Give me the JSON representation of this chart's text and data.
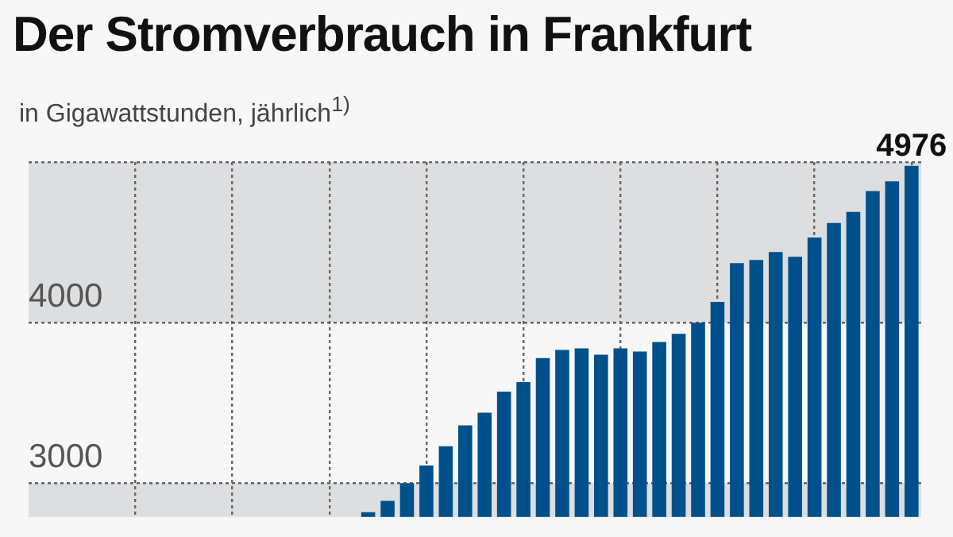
{
  "chart_data": {
    "type": "bar",
    "title": "Der Stromverbrauch in Frankfurt",
    "subtitle": "in Gigawattstunden, jährlich$^{1)}$",
    "categories": [
      null,
      null,
      null,
      null,
      null,
      null,
      null,
      null,
      null,
      null,
      null,
      null,
      null,
      null,
      null,
      null,
      null,
      null,
      null,
      null,
      null,
      null,
      null,
      null,
      null,
      null,
      null,
      null,
      null,
      null,
      null,
      null,
      null,
      null,
      null,
      null,
      null,
      null,
      null,
      null,
      null,
      null,
      null,
      null,
      null,
      null
    ],
    "values": [
      null,
      null,
      null,
      null,
      null,
      null,
      null,
      null,
      null,
      null,
      null,
      null,
      null,
      null,
      null,
      null,
      null,
      2820,
      2890,
      3000,
      3110,
      3230,
      3360,
      3440,
      3570,
      3630,
      3780,
      3830,
      3840,
      3800,
      3840,
      3820,
      3880,
      3930,
      4000,
      4130,
      4370,
      4390,
      4440,
      4410,
      4530,
      4620,
      4690,
      4820,
      4880,
      4976
    ],
    "value_labels": [
      null,
      null,
      null,
      null,
      null,
      null,
      null,
      null,
      null,
      null,
      null,
      null,
      null,
      null,
      null,
      null,
      null,
      null,
      null,
      null,
      null,
      null,
      null,
      null,
      null,
      null,
      null,
      null,
      null,
      null,
      null,
      null,
      null,
      null,
      null,
      null,
      null,
      null,
      null,
      null,
      null,
      null,
      null,
      null,
      null,
      "4976"
    ],
    "color": "#00508c",
    "ylim": [
      2790,
      5000
    ],
    "yticks": [
      3000,
      4000,
      {
        "value": 5000,
        "label": null
      }
    ],
    "grid": true,
    "legend": false
  }
}
